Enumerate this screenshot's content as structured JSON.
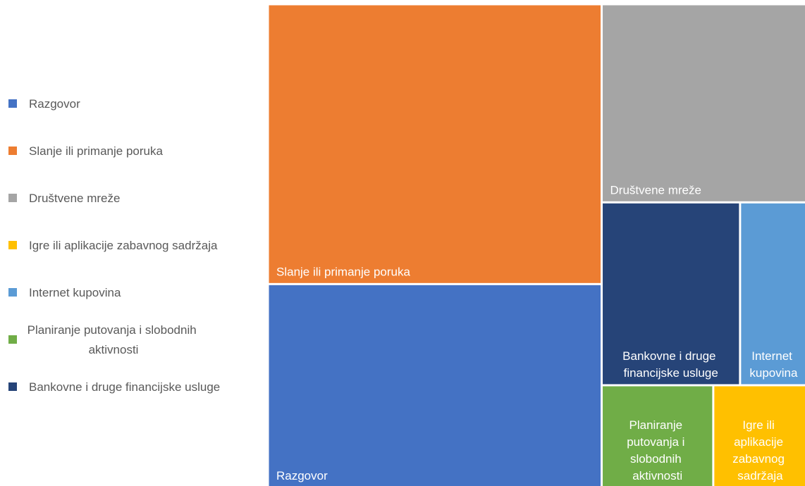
{
  "chart_data": {
    "type": "treemap",
    "categories": [
      "Razgovor",
      "Slanje ili primanje poruka",
      "Društvene mreže",
      "Igre ili aplikacije zabavnog sadržaja",
      "Internet kupovina",
      "Planiranje putovanja i slobodnih aktivnosti",
      "Bankovne i druge financijske usluge"
    ],
    "values": [
      26.1,
      35.8,
      15.6,
      3.7,
      4.7,
      4.4,
      9.7
    ],
    "colors": [
      "#4472c4",
      "#ed7d31",
      "#a5a5a5",
      "#ffc000",
      "#5b9bd5",
      "#70ad47",
      "#264478"
    ],
    "legend": "left"
  }
}
